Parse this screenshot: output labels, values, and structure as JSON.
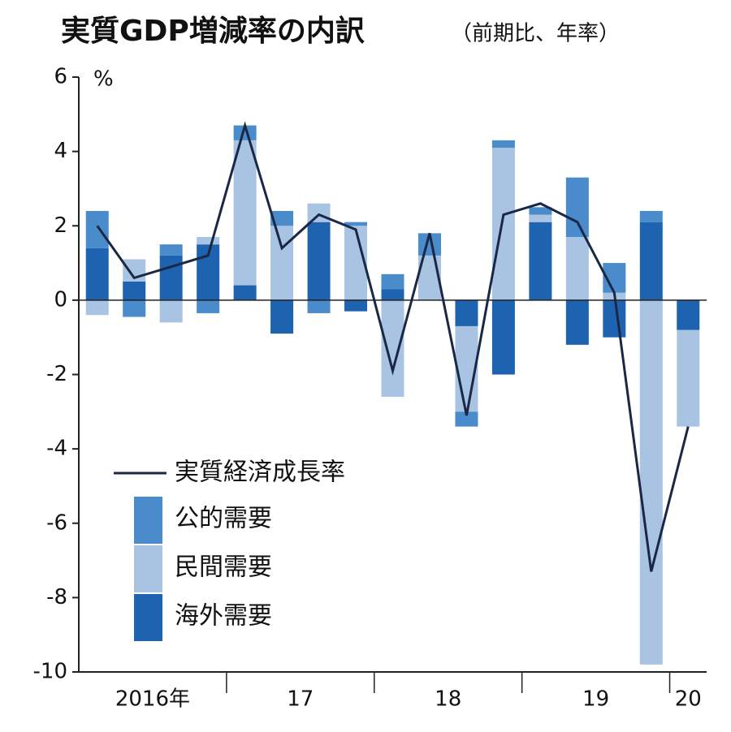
{
  "chart_data": {
    "type": "bar",
    "title": "実質GDP増減率の内訳",
    "subtitle": "（前期比、年率）",
    "y_unit": "%",
    "categories": [
      "2016年",
      null,
      null,
      null,
      "17",
      null,
      null,
      null,
      "18",
      null,
      null,
      null,
      "19",
      null,
      null,
      null,
      "20"
    ],
    "series": [
      {
        "name": "公的需要",
        "color": "#4a8bcb",
        "values": [
          1.0,
          -0.45,
          0.3,
          -0.35,
          0.4,
          0.4,
          -0.35,
          0.1,
          0.4,
          0.6,
          -0.4,
          0.2,
          0.2,
          1.6,
          0.8,
          0.3,
          0.0
        ]
      },
      {
        "name": "民間需要",
        "color": "#a9c3e3",
        "values": [
          -0.4,
          0.6,
          -0.6,
          0.2,
          3.9,
          2.0,
          0.5,
          2.0,
          -2.6,
          1.2,
          -2.3,
          4.1,
          0.2,
          1.7,
          0.2,
          -9.8,
          -2.6
        ]
      },
      {
        "name": "海外需要",
        "color": "#1d63b0",
        "values": [
          1.4,
          0.5,
          1.2,
          1.5,
          0.4,
          -0.9,
          2.1,
          -0.3,
          0.3,
          0.0,
          -0.7,
          -2.0,
          2.1,
          -1.2,
          -1.0,
          2.1,
          -0.8
        ]
      }
    ],
    "line": {
      "name": "実質経済成長率",
      "color": "#1a2846",
      "values": [
        2.0,
        0.6,
        0.9,
        1.2,
        4.7,
        1.4,
        2.3,
        1.9,
        -1.9,
        1.8,
        -3.1,
        2.3,
        2.6,
        2.1,
        0.2,
        -7.3,
        -3.4
      ]
    },
    "ylim": [
      -10,
      6
    ],
    "yticks": [
      -10,
      -8,
      -6,
      -4,
      -2,
      0,
      2,
      4,
      6
    ]
  }
}
